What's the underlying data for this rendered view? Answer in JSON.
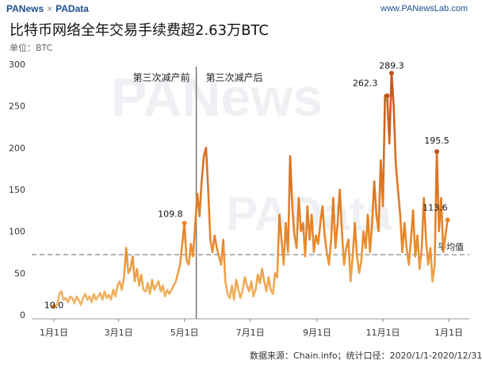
{
  "header": {
    "brand_left": "PANews",
    "brand_sep": "×",
    "brand_right": "PAData",
    "site": "www.PANewsLab.com"
  },
  "title": "比特币网络全年交易手续费超2.63万BTC",
  "unit_label": "单位：BTC",
  "source": "数据来源：Chain.info；统计口径：2020/1/1-2020/12/31",
  "watermark": [
    "PANews",
    "PAData"
  ],
  "colors": {
    "line_low": "#f2c070",
    "line_mid": "#e8882a",
    "line_high": "#c4521a",
    "avg_line": "#999999",
    "divider": "#777777"
  },
  "chart_data": {
    "type": "line",
    "title": "比特币网络全年交易手续费超2.63万BTC",
    "ylabel": "单位：BTC",
    "ylim": [
      0,
      300
    ],
    "yticks": [
      0,
      50,
      100,
      150,
      200,
      250,
      300
    ],
    "xticks": [
      {
        "label": "1月1日",
        "day": 0
      },
      {
        "label": "3月1日",
        "day": 60
      },
      {
        "label": "5月1日",
        "day": 121
      },
      {
        "label": "7月1日",
        "day": 182
      },
      {
        "label": "9月1日",
        "day": 244
      },
      {
        "label": "11月1日",
        "day": 305
      },
      {
        "label": "1月1日",
        "day": 366
      }
    ],
    "average_label": "平均值",
    "average_value": 72,
    "halving_day": 132,
    "halving_labels": {
      "before": "第三次减产前",
      "after": "第三次减产后"
    },
    "series": [
      {
        "points": [
          [
            0,
            10
          ],
          [
            3,
            12
          ],
          [
            5,
            25
          ],
          [
            7,
            28
          ],
          [
            9,
            18
          ],
          [
            11,
            20
          ],
          [
            13,
            15
          ],
          [
            15,
            22
          ],
          [
            17,
            20
          ],
          [
            19,
            14
          ],
          [
            21,
            22
          ],
          [
            23,
            18
          ],
          [
            25,
            12
          ],
          [
            27,
            20
          ],
          [
            29,
            25
          ],
          [
            31,
            18
          ],
          [
            33,
            22
          ],
          [
            35,
            15
          ],
          [
            37,
            25
          ],
          [
            39,
            18
          ],
          [
            41,
            22
          ],
          [
            43,
            26
          ],
          [
            45,
            18
          ],
          [
            47,
            28
          ],
          [
            49,
            20
          ],
          [
            51,
            24
          ],
          [
            53,
            18
          ],
          [
            55,
            30
          ],
          [
            57,
            22
          ],
          [
            59,
            35
          ],
          [
            61,
            40
          ],
          [
            63,
            30
          ],
          [
            65,
            45
          ],
          [
            67,
            80
          ],
          [
            69,
            50
          ],
          [
            71,
            55
          ],
          [
            73,
            70
          ],
          [
            75,
            40
          ],
          [
            77,
            55
          ],
          [
            79,
            35
          ],
          [
            81,
            48
          ],
          [
            83,
            30
          ],
          [
            85,
            28
          ],
          [
            87,
            38
          ],
          [
            89,
            25
          ],
          [
            91,
            42
          ],
          [
            93,
            30
          ],
          [
            95,
            35
          ],
          [
            97,
            40
          ],
          [
            99,
            28
          ],
          [
            101,
            35
          ],
          [
            103,
            22
          ],
          [
            105,
            30
          ],
          [
            107,
            25
          ],
          [
            109,
            30
          ],
          [
            111,
            35
          ],
          [
            113,
            40
          ],
          [
            115,
            50
          ],
          [
            117,
            60
          ],
          [
            119,
            85
          ],
          [
            121,
            109.8
          ],
          [
            123,
            65
          ],
          [
            125,
            60
          ],
          [
            127,
            85
          ],
          [
            129,
            70
          ],
          [
            131,
            108
          ],
          [
            133,
            145
          ],
          [
            135,
            118
          ],
          [
            137,
            160
          ],
          [
            139,
            190
          ],
          [
            141,
            200
          ],
          [
            143,
            150
          ],
          [
            145,
            90
          ],
          [
            147,
            75
          ],
          [
            149,
            95
          ],
          [
            151,
            80
          ],
          [
            153,
            70
          ],
          [
            155,
            60
          ],
          [
            157,
            90
          ],
          [
            159,
            40
          ],
          [
            161,
            25
          ],
          [
            163,
            20
          ],
          [
            165,
            35
          ],
          [
            167,
            18
          ],
          [
            169,
            42
          ],
          [
            171,
            30
          ],
          [
            173,
            20
          ],
          [
            175,
            30
          ],
          [
            177,
            45
          ],
          [
            179,
            35
          ],
          [
            181,
            28
          ],
          [
            183,
            40
          ],
          [
            185,
            22
          ],
          [
            187,
            30
          ],
          [
            189,
            48
          ],
          [
            191,
            38
          ],
          [
            193,
            55
          ],
          [
            195,
            40
          ],
          [
            197,
            28
          ],
          [
            199,
            45
          ],
          [
            201,
            30
          ],
          [
            203,
            25
          ],
          [
            205,
            50
          ],
          [
            207,
            45
          ],
          [
            209,
            120
          ],
          [
            211,
            90
          ],
          [
            213,
            60
          ],
          [
            215,
            110
          ],
          [
            217,
            75
          ],
          [
            219,
            190
          ],
          [
            221,
            130
          ],
          [
            223,
            95
          ],
          [
            225,
            80
          ],
          [
            227,
            140
          ],
          [
            229,
            100
          ],
          [
            231,
            110
          ],
          [
            233,
            70
          ],
          [
            235,
            130
          ],
          [
            237,
            90
          ],
          [
            239,
            120
          ],
          [
            241,
            75
          ],
          [
            243,
            95
          ],
          [
            245,
            85
          ],
          [
            247,
            110
          ],
          [
            249,
            130
          ],
          [
            251,
            95
          ],
          [
            253,
            75
          ],
          [
            255,
            60
          ],
          [
            257,
            90
          ],
          [
            259,
            140
          ],
          [
            261,
            80
          ],
          [
            263,
            110
          ],
          [
            265,
            150
          ],
          [
            267,
            100
          ],
          [
            269,
            60
          ],
          [
            271,
            80
          ],
          [
            273,
            90
          ],
          [
            275,
            40
          ],
          [
            277,
            70
          ],
          [
            279,
            110
          ],
          [
            281,
            70
          ],
          [
            283,
            50
          ],
          [
            285,
            65
          ],
          [
            287,
            100
          ],
          [
            289,
            80
          ],
          [
            291,
            120
          ],
          [
            293,
            75
          ],
          [
            295,
            110
          ],
          [
            297,
            160
          ],
          [
            299,
            120
          ],
          [
            301,
            100
          ],
          [
            303,
            185
          ],
          [
            305,
            130
          ],
          [
            307,
            263
          ],
          [
            309,
            262.3
          ],
          [
            311,
            205
          ],
          [
            313,
            289.3
          ],
          [
            315,
            250
          ],
          [
            317,
            180
          ],
          [
            319,
            150
          ],
          [
            321,
            120
          ],
          [
            323,
            75
          ],
          [
            325,
            110
          ],
          [
            327,
            80
          ],
          [
            329,
            60
          ],
          [
            331,
            90
          ],
          [
            333,
            125
          ],
          [
            335,
            70
          ],
          [
            337,
            95
          ],
          [
            339,
            55
          ],
          [
            341,
            80
          ],
          [
            343,
            140
          ],
          [
            345,
            90
          ],
          [
            347,
            60
          ],
          [
            349,
            80
          ],
          [
            351,
            40
          ],
          [
            353,
            60
          ],
          [
            355,
            195.5
          ],
          [
            357,
            100
          ],
          [
            359,
            140
          ],
          [
            361,
            75
          ],
          [
            363,
            95
          ],
          [
            365,
            113.6
          ]
        ]
      }
    ],
    "annotations": [
      {
        "day": 0,
        "value": 10.0,
        "text": "10.0"
      },
      {
        "day": 121,
        "value": 109.8,
        "text": "109.8"
      },
      {
        "day": 309,
        "value": 262.3,
        "text": "262.3"
      },
      {
        "day": 313,
        "value": 289.3,
        "text": "289.3"
      },
      {
        "day": 355,
        "value": 195.5,
        "text": "195.5"
      },
      {
        "day": 365,
        "value": 113.6,
        "text": "113.6"
      }
    ]
  }
}
